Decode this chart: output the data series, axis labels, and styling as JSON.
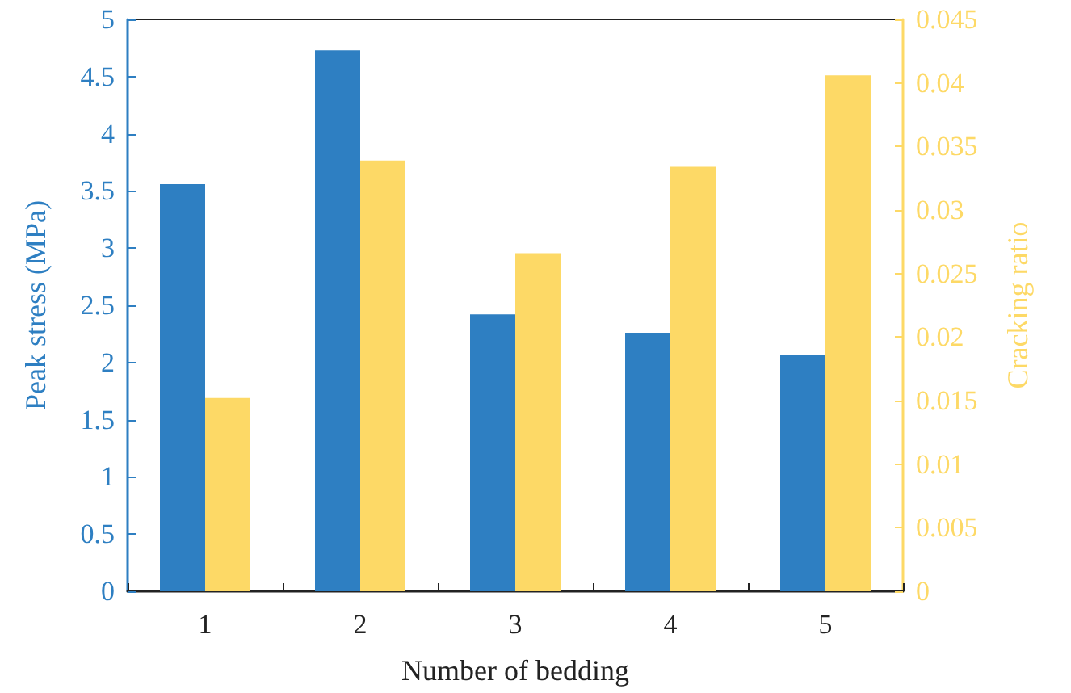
{
  "chart_data": {
    "type": "bar",
    "xlabel": "Number of bedding",
    "ylabel": "Peak stress (MPa)",
    "y2label": "Cracking ratio",
    "categories": [
      "1",
      "2",
      "3",
      "4",
      "5"
    ],
    "series": [
      {
        "color": "#2e7fc2",
        "values": [
          3.56,
          4.73,
          2.42,
          2.26,
          2.07
        ]
      },
      {
        "color": "#fdd966",
        "axis": "y2",
        "values": [
          0.0152,
          0.0339,
          0.0266,
          0.0334,
          0.0406
        ]
      }
    ],
    "ylim": [
      0,
      5
    ],
    "yticks": [
      0,
      0.5,
      1,
      1.5,
      2,
      2.5,
      3,
      3.5,
      4,
      4.5,
      5
    ],
    "y2lim": [
      0,
      0.045
    ],
    "y2ticks": [
      0,
      0.005,
      0.01,
      0.015,
      0.02,
      0.025,
      0.03,
      0.035,
      0.04,
      0.045
    ],
    "grid": false
  }
}
